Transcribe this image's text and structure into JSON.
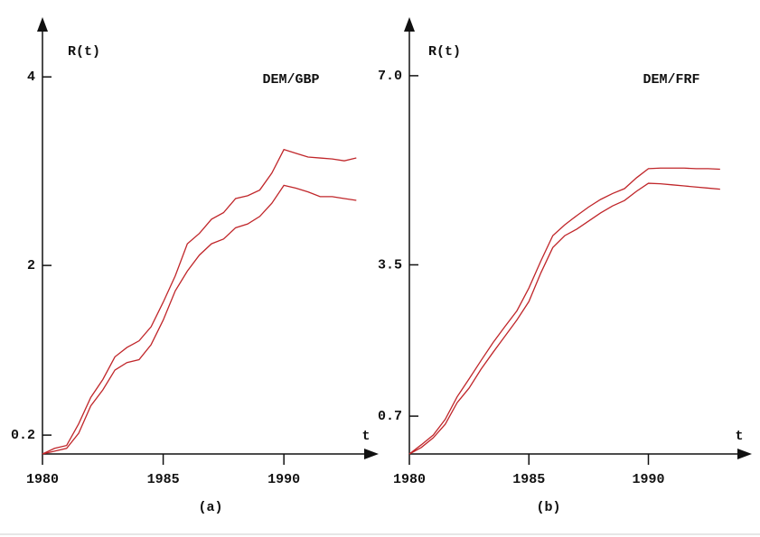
{
  "chart_data": [
    {
      "type": "line",
      "ylabel": "R(t)",
      "xlabel": "t",
      "annotation": "DEM/GBP",
      "caption": "(a)",
      "x": [
        1980,
        1980.5,
        1981,
        1981.5,
        1982,
        1982.5,
        1983,
        1983.5,
        1984,
        1984.5,
        1985,
        1985.5,
        1986,
        1986.5,
        1987,
        1987.5,
        1988,
        1988.5,
        1989,
        1989.5,
        1990,
        1990.5,
        1991,
        1991.5,
        1992,
        1992.5,
        1993
      ],
      "series": [
        {
          "color": "#c0262a",
          "values": [
            0,
            0.06,
            0.09,
            0.32,
            0.6,
            0.79,
            1.03,
            1.13,
            1.2,
            1.35,
            1.61,
            1.89,
            2.23,
            2.34,
            2.49,
            2.56,
            2.71,
            2.74,
            2.8,
            2.98,
            3.23,
            3.19,
            3.15,
            3.14,
            3.13,
            3.11,
            3.14
          ]
        },
        {
          "color": "#c0262a",
          "values": [
            0,
            0.03,
            0.06,
            0.22,
            0.51,
            0.68,
            0.89,
            0.97,
            1.0,
            1.16,
            1.42,
            1.73,
            1.94,
            2.11,
            2.23,
            2.28,
            2.4,
            2.44,
            2.52,
            2.66,
            2.85,
            2.82,
            2.78,
            2.73,
            2.73,
            2.71,
            2.69
          ]
        }
      ],
      "xlim": [
        1980,
        1993.4
      ],
      "xticks": [
        1980,
        1985,
        1990
      ],
      "ylim": [
        0,
        4.5
      ],
      "yticks": [
        0.2,
        2,
        4
      ]
    },
    {
      "type": "line",
      "ylabel": "R(t)",
      "xlabel": "t",
      "annotation": "DEM/FRF",
      "caption": "(b)",
      "x": [
        1980,
        1980.5,
        1981,
        1981.5,
        1982,
        1982.5,
        1983,
        1983.5,
        1984,
        1984.5,
        1985,
        1985.5,
        1986,
        1986.5,
        1987,
        1987.5,
        1988,
        1988.5,
        1989,
        1989.5,
        1990,
        1990.5,
        1991,
        1991.5,
        1992,
        1992.5,
        1993
      ],
      "series": [
        {
          "color": "#c0262a",
          "values": [
            0,
            0.17,
            0.35,
            0.64,
            1.06,
            1.39,
            1.73,
            2.06,
            2.36,
            2.65,
            3.07,
            3.57,
            4.04,
            4.24,
            4.41,
            4.57,
            4.71,
            4.82,
            4.91,
            5.11,
            5.28,
            5.29,
            5.29,
            5.29,
            5.28,
            5.28,
            5.27
          ]
        },
        {
          "color": "#c0262a",
          "values": [
            0,
            0.12,
            0.3,
            0.55,
            0.95,
            1.22,
            1.57,
            1.88,
            2.18,
            2.48,
            2.82,
            3.35,
            3.82,
            4.04,
            4.16,
            4.31,
            4.46,
            4.59,
            4.69,
            4.86,
            5.01,
            5.0,
            4.98,
            4.96,
            4.94,
            4.92,
            4.9
          ]
        }
      ],
      "xlim": [
        1980,
        1993.8
      ],
      "xticks": [
        1980,
        1985,
        1990
      ],
      "ylim": [
        0,
        7.85
      ],
      "yticks": [
        0.7,
        3.5,
        {
          "value": 7,
          "label": "7.0"
        }
      ]
    }
  ]
}
